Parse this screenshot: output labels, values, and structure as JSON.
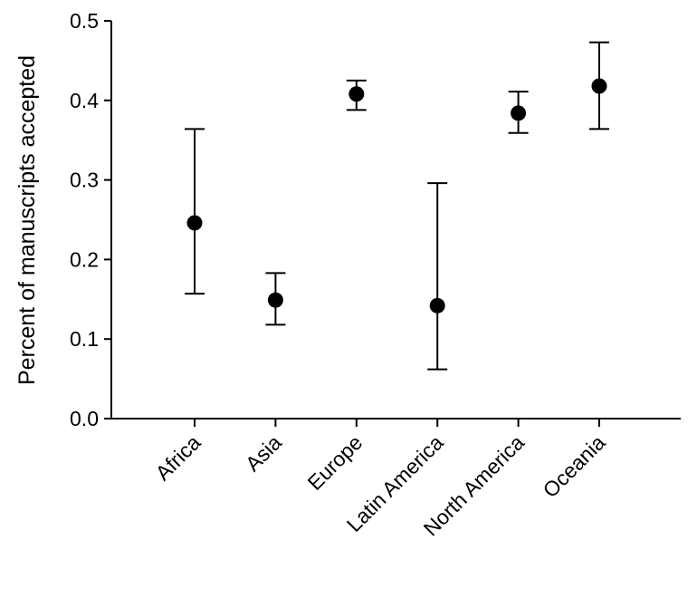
{
  "chart_data": {
    "type": "scatter",
    "title": "",
    "xlabel": "",
    "ylabel": "Percent of manuscripts accepted",
    "ylim": [
      0,
      0.5
    ],
    "yticks": [
      "0.0",
      "0.1",
      "0.2",
      "0.3",
      "0.4",
      "0.5"
    ],
    "ytick_values": [
      0,
      0.1,
      0.2,
      0.3,
      0.4,
      0.5
    ],
    "grid": false,
    "categories": [
      "Africa",
      "Asia",
      "Europe",
      "Latin America",
      "North America",
      "Oceania"
    ],
    "values": [
      0.246,
      0.149,
      0.408,
      0.142,
      0.384,
      0.418
    ],
    "error_low": [
      0.157,
      0.118,
      0.388,
      0.062,
      0.359,
      0.364
    ],
    "error_high": [
      0.364,
      0.183,
      0.425,
      0.296,
      0.411,
      0.473
    ],
    "marker_color": "#000000"
  }
}
